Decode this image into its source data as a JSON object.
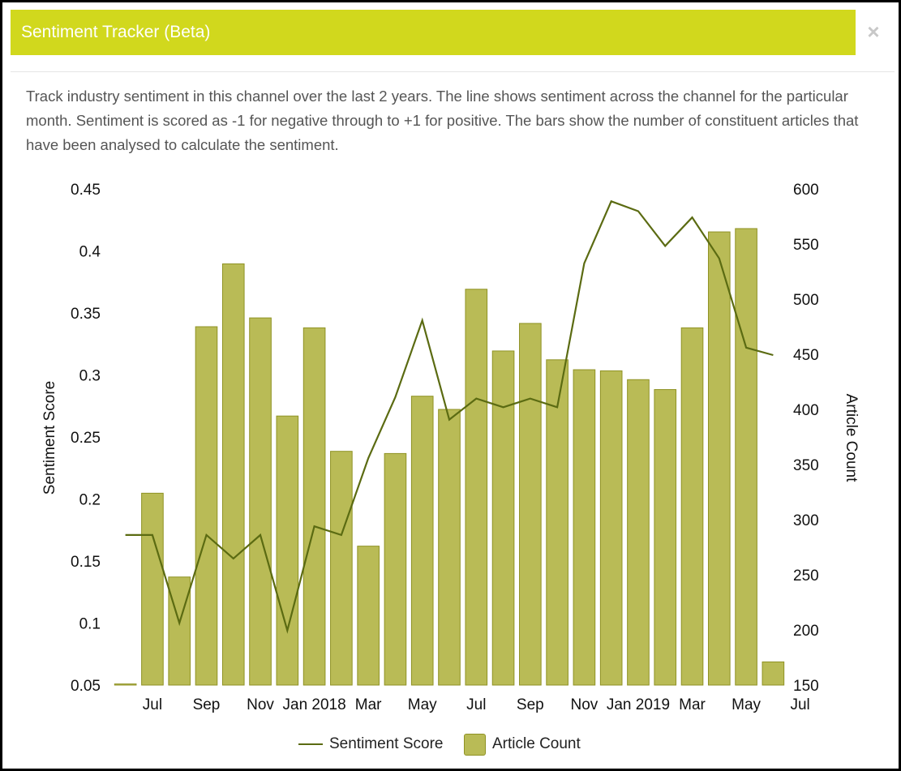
{
  "dialog": {
    "title": "Sentiment Tracker (Beta)",
    "close_label": "×",
    "description": "Track industry sentiment in this channel over the last 2 years. The line shows sentiment across the channel for the particular month. Sentiment is scored as -1 for negative through to +1 for positive. The bars show the number of constituent articles that have been analysed to calculate the sentiment."
  },
  "colors": {
    "header": "#d1d81d",
    "bar_fill": "#b9bb56",
    "bar_stroke": "#8f9224",
    "line": "#5b6b12"
  },
  "chart_data": {
    "type": "bar",
    "x_tick_labels": [
      "Jul",
      "Sep",
      "Nov",
      "Jan 2018",
      "Mar",
      "May",
      "Jul",
      "Sep",
      "Nov",
      "Jan 2019",
      "Mar",
      "May",
      "Jul"
    ],
    "months": [
      "2017-06",
      "2017-07",
      "2017-08",
      "2017-09",
      "2017-10",
      "2017-11",
      "2017-12",
      "2018-01",
      "2018-02",
      "2018-03",
      "2018-04",
      "2018-05",
      "2018-06",
      "2018-07",
      "2018-08",
      "2018-09",
      "2018-10",
      "2018-11",
      "2018-12",
      "2019-01",
      "2019-02",
      "2019-03",
      "2019-04",
      "2019-05",
      "2019-06"
    ],
    "series": [
      {
        "name": "Article Count",
        "type": "bar",
        "axis": "right",
        "values": [
          151,
          324,
          248,
          475,
          532,
          483,
          394,
          474,
          362,
          276,
          360,
          412,
          400,
          509,
          453,
          478,
          445,
          436,
          435,
          427,
          418,
          474,
          561,
          564,
          171
        ]
      },
      {
        "name": "Sentiment Score",
        "type": "line",
        "axis": "left",
        "values": [
          0.171,
          0.171,
          0.1,
          0.171,
          0.152,
          0.171,
          0.094,
          0.178,
          0.171,
          0.233,
          0.282,
          0.344,
          0.264,
          0.281,
          0.274,
          0.281,
          0.274,
          0.39,
          0.44,
          0.432,
          0.404,
          0.427,
          0.394,
          0.322,
          0.316
        ]
      }
    ],
    "ylabel": "Sentiment Score",
    "ylabel_right": "Article Count",
    "ylim": [
      0.05,
      0.45
    ],
    "yticks": [
      0.05,
      0.1,
      0.15,
      0.2,
      0.25,
      0.3,
      0.35,
      0.4,
      0.45
    ],
    "ylim_right": [
      150,
      600
    ],
    "yticks_right": [
      150,
      200,
      250,
      300,
      350,
      400,
      450,
      500,
      550,
      600
    ],
    "grid": false,
    "legend_position": "bottom"
  }
}
